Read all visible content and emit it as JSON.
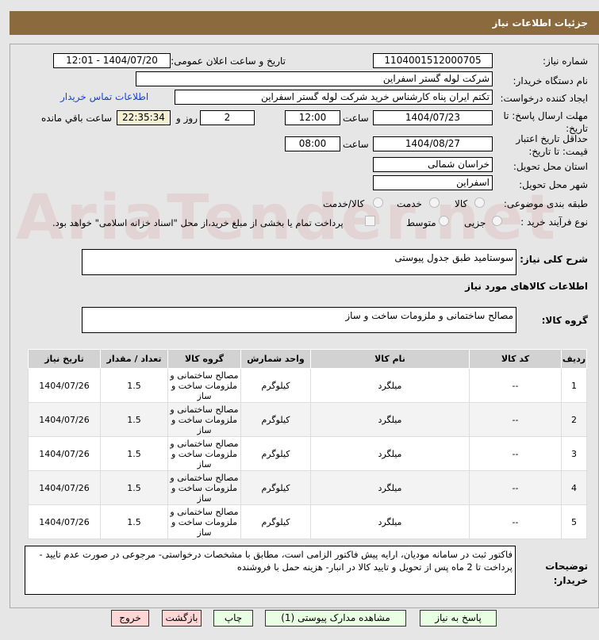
{
  "header": {
    "title": "جزئیات اطلاعات نیاز"
  },
  "fields": {
    "need_number_label": "شماره نیاز:",
    "need_number": "1104001512000705",
    "announce_label": "تاریخ و ساعت اعلان عمومی:",
    "announce_value": "1404/07/20 - 12:01",
    "buyer_label": "نام دستگاه خریدار:",
    "buyer": "شرکت لوله گستر اسفراین",
    "creator_label": "ایجاد کننده درخواست:",
    "creator": "تکتم ایران پناه کارشناس خرید شرکت لوله گستر اسفراین",
    "contact_link": "اطلاعات تماس خریدار",
    "deadline_label": "مهلت ارسال پاسخ: تا تاریخ:",
    "deadline_date": "1404/07/23",
    "time_label": "ساعت",
    "deadline_time": "12:00",
    "days": "2",
    "days_label": "روز و",
    "remaining": "22:35:34",
    "remaining_label": "ساعت باقي مانده",
    "validity_label": "حداقل تاریخ اعتبار قیمت: تا تاریخ:",
    "validity_date": "1404/08/27",
    "validity_time": "08:00",
    "province_label": "استان محل تحویل:",
    "province": "خراسان شمالی",
    "city_label": "شهر محل تحویل:",
    "city": "اسفراین",
    "category_label": "طبقه بندی موضوعی:",
    "category_options": [
      "کالا",
      "خدمت",
      "کالا/خدمت"
    ],
    "process_label": "نوع فرآیند خرید :",
    "process_options": [
      "جزیی",
      "متوسط"
    ],
    "payment_note": "پرداخت تمام یا بخشی از مبلغ خرید،از محل \"اسناد خزانه اسلامی\" خواهد بود."
  },
  "summary": {
    "label": "شرح کلی نیاز:",
    "value": "سوستامید طبق جدول پیوستی"
  },
  "goods": {
    "section_title": "اطلاعات کالاهای مورد نیاز",
    "group_label": "گروه کالا:",
    "group_value": "مصالح ساختمانی و ملزومات ساخت و ساز"
  },
  "table": {
    "headers": [
      "ردیف",
      "کد کالا",
      "نام کالا",
      "واحد شمارش",
      "گروه کالا",
      "تعداد / مقدار",
      "تاریخ نیاز"
    ],
    "rows": [
      [
        "1",
        "--",
        "میلگرد",
        "کیلوگرم",
        "مصالح ساختمانی و ملزومات ساخت و ساز",
        "1.5",
        "1404/07/26"
      ],
      [
        "2",
        "--",
        "میلگرد",
        "کیلوگرم",
        "مصالح ساختمانی و ملزومات ساخت و ساز",
        "1.5",
        "1404/07/26"
      ],
      [
        "3",
        "--",
        "میلگرد",
        "کیلوگرم",
        "مصالح ساختمانی و ملزومات ساخت و ساز",
        "1.5",
        "1404/07/26"
      ],
      [
        "4",
        "--",
        "میلگرد",
        "کیلوگرم",
        "مصالح ساختمانی و ملزومات ساخت و ساز",
        "1.5",
        "1404/07/26"
      ],
      [
        "5",
        "--",
        "میلگرد",
        "کیلوگرم",
        "مصالح ساختمانی و ملزومات ساخت و ساز",
        "1.5",
        "1404/07/26"
      ]
    ]
  },
  "notes": {
    "label": "توضیحات خریدار:",
    "value": "فاکتور ثبت در سامانه مودیان، ارایه پیش فاکتور الزامی است، مطابق با مشخصات درخواستی- مرجوعی در صورت عدم تایید - پرداخت تا 2 ماه پس از تحویل و تایید کالا در انبار- هزینه حمل با فروشنده"
  },
  "buttons": {
    "reply": "پاسخ به نیاز",
    "attachments": "مشاهده مدارک پیوستی (1)",
    "print": "چاپ",
    "back": "بازگشت",
    "exit": "خروج"
  },
  "watermark": "AriaTender.net"
}
